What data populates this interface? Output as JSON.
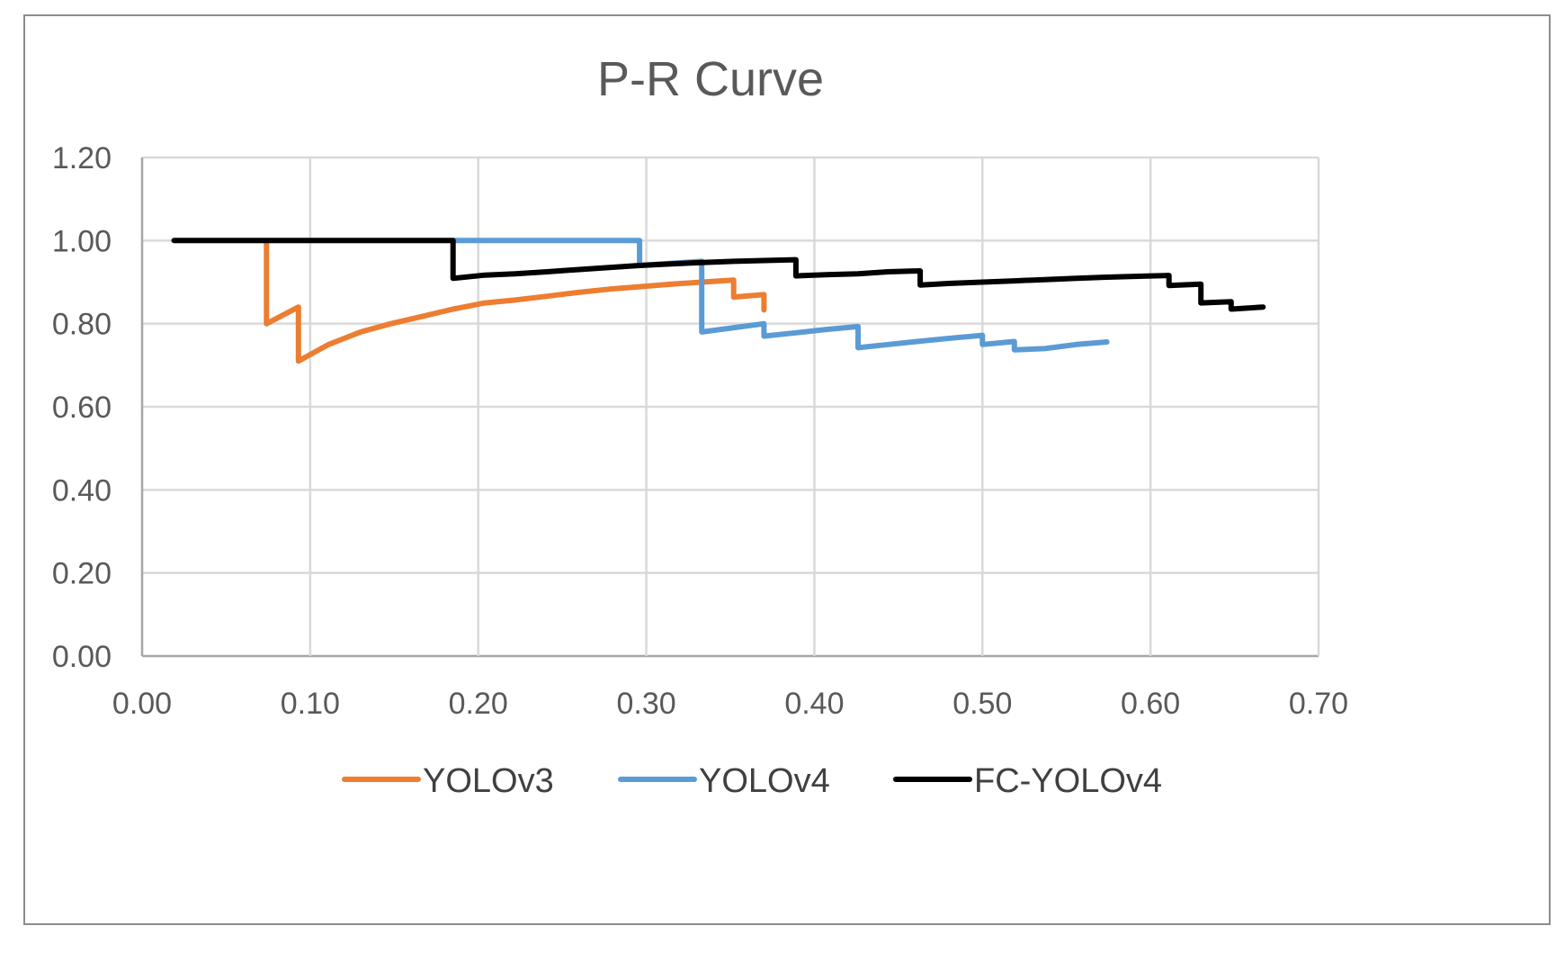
{
  "chart_data": {
    "type": "line",
    "title": "P-R Curve",
    "xlabel": "",
    "ylabel": "",
    "xlim": [
      0,
      0.7
    ],
    "ylim": [
      0,
      1.2
    ],
    "xticks": [
      0,
      0.1,
      0.2,
      0.3,
      0.4,
      0.5,
      0.6,
      0.7
    ],
    "xtick_labels": [
      "0.00",
      "0.10",
      "0.20",
      "0.30",
      "0.40",
      "0.50",
      "0.60",
      "0.70"
    ],
    "yticks": [
      0,
      0.2,
      0.4,
      0.6,
      0.8,
      1.0,
      1.2
    ],
    "ytick_labels": [
      "0.00",
      "0.20",
      "0.40",
      "0.60",
      "0.80",
      "1.00",
      "1.20"
    ],
    "grid": true,
    "legend_position": "bottom",
    "series": [
      {
        "name": "YOLOv3",
        "color": "#ED7D31",
        "points": [
          [
            0.074,
            1.0
          ],
          [
            0.074,
            0.8
          ],
          [
            0.093,
            0.84
          ],
          [
            0.093,
            0.71
          ],
          [
            0.111,
            0.75
          ],
          [
            0.13,
            0.78
          ],
          [
            0.148,
            0.8
          ],
          [
            0.167,
            0.818
          ],
          [
            0.185,
            0.835
          ],
          [
            0.204,
            0.85
          ],
          [
            0.222,
            0.857
          ],
          [
            0.241,
            0.866
          ],
          [
            0.259,
            0.875
          ],
          [
            0.278,
            0.883
          ],
          [
            0.296,
            0.889
          ],
          [
            0.315,
            0.895
          ],
          [
            0.333,
            0.9
          ],
          [
            0.352,
            0.905
          ],
          [
            0.352,
            0.864
          ],
          [
            0.37,
            0.87
          ],
          [
            0.37,
            0.833
          ]
        ]
      },
      {
        "name": "YOLOv4",
        "color": "#5B9BD5",
        "points": [
          [
            0.185,
            1.0
          ],
          [
            0.296,
            1.0
          ],
          [
            0.296,
            0.94
          ],
          [
            0.333,
            0.95
          ],
          [
            0.333,
            0.78
          ],
          [
            0.37,
            0.8
          ],
          [
            0.37,
            0.77
          ],
          [
            0.389,
            0.778
          ],
          [
            0.407,
            0.786
          ],
          [
            0.426,
            0.793
          ],
          [
            0.426,
            0.742
          ],
          [
            0.444,
            0.75
          ],
          [
            0.463,
            0.758
          ],
          [
            0.481,
            0.765
          ],
          [
            0.5,
            0.772
          ],
          [
            0.5,
            0.75
          ],
          [
            0.519,
            0.757
          ],
          [
            0.519,
            0.737
          ],
          [
            0.537,
            0.74
          ],
          [
            0.556,
            0.75
          ],
          [
            0.574,
            0.756
          ]
        ]
      },
      {
        "name": "FC-YOLOv4",
        "color": "#000000",
        "points": [
          [
            0.019,
            1.0
          ],
          [
            0.185,
            1.0
          ],
          [
            0.185,
            0.909
          ],
          [
            0.204,
            0.917
          ],
          [
            0.222,
            0.92
          ],
          [
            0.241,
            0.925
          ],
          [
            0.259,
            0.93
          ],
          [
            0.278,
            0.935
          ],
          [
            0.296,
            0.94
          ],
          [
            0.315,
            0.944
          ],
          [
            0.333,
            0.947
          ],
          [
            0.352,
            0.95
          ],
          [
            0.37,
            0.952
          ],
          [
            0.389,
            0.954
          ],
          [
            0.389,
            0.915
          ],
          [
            0.407,
            0.918
          ],
          [
            0.426,
            0.92
          ],
          [
            0.444,
            0.925
          ],
          [
            0.463,
            0.927
          ],
          [
            0.463,
            0.893
          ],
          [
            0.481,
            0.897
          ],
          [
            0.5,
            0.9
          ],
          [
            0.519,
            0.903
          ],
          [
            0.537,
            0.906
          ],
          [
            0.556,
            0.909
          ],
          [
            0.574,
            0.912
          ],
          [
            0.593,
            0.914
          ],
          [
            0.611,
            0.916
          ],
          [
            0.611,
            0.892
          ],
          [
            0.63,
            0.895
          ],
          [
            0.63,
            0.85
          ],
          [
            0.648,
            0.853
          ],
          [
            0.648,
            0.835
          ],
          [
            0.667,
            0.84
          ]
        ]
      }
    ]
  }
}
